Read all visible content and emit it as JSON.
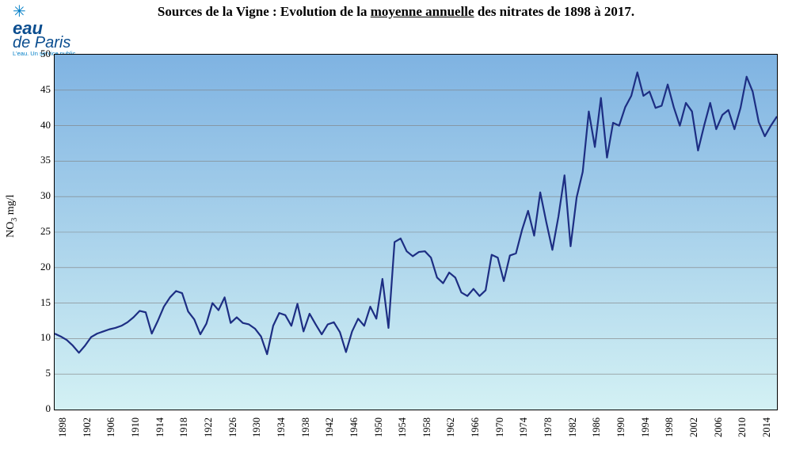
{
  "logo": {
    "line1": "eau",
    "line2": "de Paris",
    "tagline": "L'eau. Un service public"
  },
  "title": {
    "prefix": "Sources de la Vigne : Evolution de la ",
    "underlined": "moyenne annuelle",
    "suffix": " des nitrates de 1898 à 2017."
  },
  "chart": {
    "type": "line",
    "ylabel_html": "NO<sub>3</sub> mg/l",
    "ylim": [
      0,
      50
    ],
    "ytick_step": 5,
    "xlim": [
      1898,
      2017
    ],
    "xtick_step": 4,
    "line_color": "#1d2e83",
    "line_width": 2.2,
    "grid_color": "#808080",
    "grid_width": 0.6,
    "border_color": "#000000",
    "gradient_top": "#7fb3e2",
    "gradient_bottom": "#d3f1f4",
    "tick_fontsize": 13,
    "years": [
      1898,
      1899,
      1900,
      1901,
      1902,
      1903,
      1904,
      1905,
      1906,
      1907,
      1908,
      1909,
      1910,
      1911,
      1912,
      1913,
      1914,
      1915,
      1916,
      1917,
      1918,
      1919,
      1920,
      1921,
      1922,
      1923,
      1924,
      1925,
      1926,
      1927,
      1928,
      1929,
      1930,
      1931,
      1932,
      1933,
      1934,
      1935,
      1936,
      1937,
      1938,
      1939,
      1940,
      1941,
      1942,
      1943,
      1944,
      1945,
      1946,
      1947,
      1948,
      1949,
      1950,
      1951,
      1952,
      1953,
      1954,
      1955,
      1956,
      1957,
      1958,
      1959,
      1960,
      1961,
      1962,
      1963,
      1964,
      1965,
      1966,
      1967,
      1968,
      1969,
      1970,
      1971,
      1972,
      1973,
      1974,
      1975,
      1976,
      1977,
      1978,
      1979,
      1980,
      1981,
      1982,
      1983,
      1984,
      1985,
      1986,
      1987,
      1988,
      1989,
      1990,
      1991,
      1992,
      1993,
      1994,
      1995,
      1996,
      1997,
      1998,
      1999,
      2000,
      2001,
      2002,
      2003,
      2004,
      2005,
      2006,
      2007,
      2008,
      2009,
      2010,
      2011,
      2012,
      2013,
      2014,
      2015,
      2016,
      2017
    ],
    "values": [
      10.7,
      10.3,
      9.8,
      9.0,
      8.0,
      9.0,
      10.2,
      10.7,
      11.0,
      11.3,
      11.5,
      11.8,
      12.3,
      13.0,
      13.9,
      13.7,
      10.7,
      12.5,
      14.5,
      15.8,
      16.7,
      16.4,
      13.8,
      12.7,
      10.6,
      12.1,
      15.0,
      14.0,
      15.8,
      12.2,
      13.0,
      12.2,
      12.0,
      11.4,
      10.3,
      7.8,
      11.8,
      13.6,
      13.3,
      11.8,
      14.9,
      11.0,
      13.5,
      12.0,
      10.6,
      12.0,
      12.3,
      10.9,
      8.1,
      11.0,
      12.8,
      11.8,
      14.5,
      12.8,
      18.4,
      11.5,
      23.6,
      24.1,
      22.3,
      21.6,
      22.2,
      22.3,
      21.4,
      18.6,
      17.8,
      19.3,
      18.6,
      16.5,
      16.0,
      17.0,
      16.0,
      16.8,
      21.8,
      21.4,
      18.1,
      21.7,
      22.0,
      25.3,
      28.0,
      24.5,
      30.6,
      26.4,
      22.5,
      27.2,
      33.0,
      23.0,
      29.9,
      33.5,
      42.0,
      37.0,
      43.9,
      35.5,
      40.4,
      40.0,
      42.6,
      44.2,
      47.5,
      44.2,
      44.8,
      42.5,
      42.8,
      45.8,
      42.6,
      40.0,
      43.2,
      42.0,
      36.5,
      40.0,
      43.2,
      39.5,
      41.5,
      42.2,
      39.5,
      42.5,
      46.9,
      44.8,
      40.5,
      38.5,
      40.0,
      41.3
    ]
  }
}
